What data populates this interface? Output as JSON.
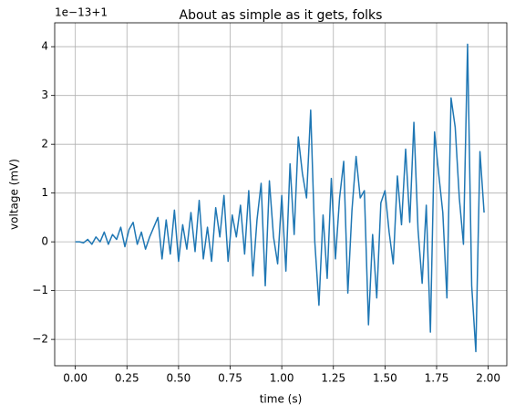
{
  "chart_data": {
    "type": "line",
    "title": "About as simple as it gets, folks",
    "x_label": "time (s)",
    "y_label": "voltage (mV)",
    "y_offset_text": "1e−13+1",
    "x": [
      0.0,
      0.02,
      0.04,
      0.06,
      0.08,
      0.1,
      0.12,
      0.14,
      0.16,
      0.18,
      0.2,
      0.22,
      0.24,
      0.26,
      0.28,
      0.3,
      0.32,
      0.34,
      0.36,
      0.38,
      0.4,
      0.42,
      0.44,
      0.46,
      0.48,
      0.5,
      0.52,
      0.54,
      0.56,
      0.58,
      0.6,
      0.62,
      0.64,
      0.66,
      0.68,
      0.7,
      0.72,
      0.74,
      0.76,
      0.78,
      0.8,
      0.82,
      0.84,
      0.86,
      0.88,
      0.9,
      0.92,
      0.94,
      0.96,
      0.98,
      1.0,
      1.02,
      1.04,
      1.06,
      1.08,
      1.1,
      1.12,
      1.14,
      1.16,
      1.18,
      1.2,
      1.22,
      1.24,
      1.26,
      1.28,
      1.3,
      1.32,
      1.34,
      1.36,
      1.38,
      1.4,
      1.42,
      1.44,
      1.46,
      1.48,
      1.5,
      1.52,
      1.54,
      1.56,
      1.58,
      1.6,
      1.62,
      1.64,
      1.66,
      1.68,
      1.7,
      1.72,
      1.74,
      1.76,
      1.78,
      1.8,
      1.82,
      1.84,
      1.86,
      1.88,
      1.9,
      1.92,
      1.94,
      1.96,
      1.98
    ],
    "series": [
      {
        "name": "voltage",
        "color": "#1f77b4",
        "values": [
          0,
          0,
          -0.02,
          0.05,
          -0.05,
          0.1,
          0,
          0.2,
          -0.05,
          0.15,
          0.05,
          0.3,
          -0.1,
          0.25,
          0.4,
          -0.05,
          0.2,
          -0.15,
          0.1,
          0.3,
          0.5,
          -0.35,
          0.45,
          -0.25,
          0.65,
          -0.4,
          0.35,
          -0.15,
          0.6,
          -0.2,
          0.85,
          -0.35,
          0.3,
          -0.4,
          0.7,
          0.1,
          0.95,
          -0.4,
          0.55,
          0.1,
          0.75,
          -0.25,
          1.05,
          -0.7,
          0.45,
          1.2,
          -0.9,
          1.25,
          0.1,
          -0.45,
          0.95,
          -0.6,
          1.6,
          0.15,
          2.15,
          1.4,
          0.9,
          2.7,
          0,
          -1.3,
          0.55,
          -0.75,
          1.3,
          -0.35,
          0.9,
          1.65,
          -1.05,
          0.65,
          1.75,
          0.9,
          1.05,
          -1.7,
          0.15,
          -1.15,
          0.8,
          1.05,
          0.2,
          -0.45,
          1.35,
          0.35,
          1.9,
          0.4,
          2.45,
          0.25,
          -0.85,
          0.75,
          -1.85,
          2.25,
          1.4,
          0.6,
          -1.15,
          2.95,
          2.35,
          0.9,
          -0.05,
          4.05,
          -0.9,
          -2.25,
          1.85,
          0.6
        ]
      }
    ],
    "xlim": [
      -0.1,
      2.09
    ],
    "ylim": [
      -2.54,
      4.49
    ],
    "xticks": [
      {
        "value": 0,
        "label": "0.00"
      },
      {
        "value": 0.25,
        "label": "0.25"
      },
      {
        "value": 0.5,
        "label": "0.50"
      },
      {
        "value": 0.75,
        "label": "0.75"
      },
      {
        "value": 1,
        "label": "1.00"
      },
      {
        "value": 1.25,
        "label": "1.25"
      },
      {
        "value": 1.5,
        "label": "1.50"
      },
      {
        "value": 1.75,
        "label": "1.75"
      },
      {
        "value": 2,
        "label": "2.00"
      }
    ],
    "yticks": [
      {
        "value": -2,
        "label": "−2"
      },
      {
        "value": -1,
        "label": "−1"
      },
      0,
      1,
      2,
      3,
      4
    ],
    "grid": true
  }
}
